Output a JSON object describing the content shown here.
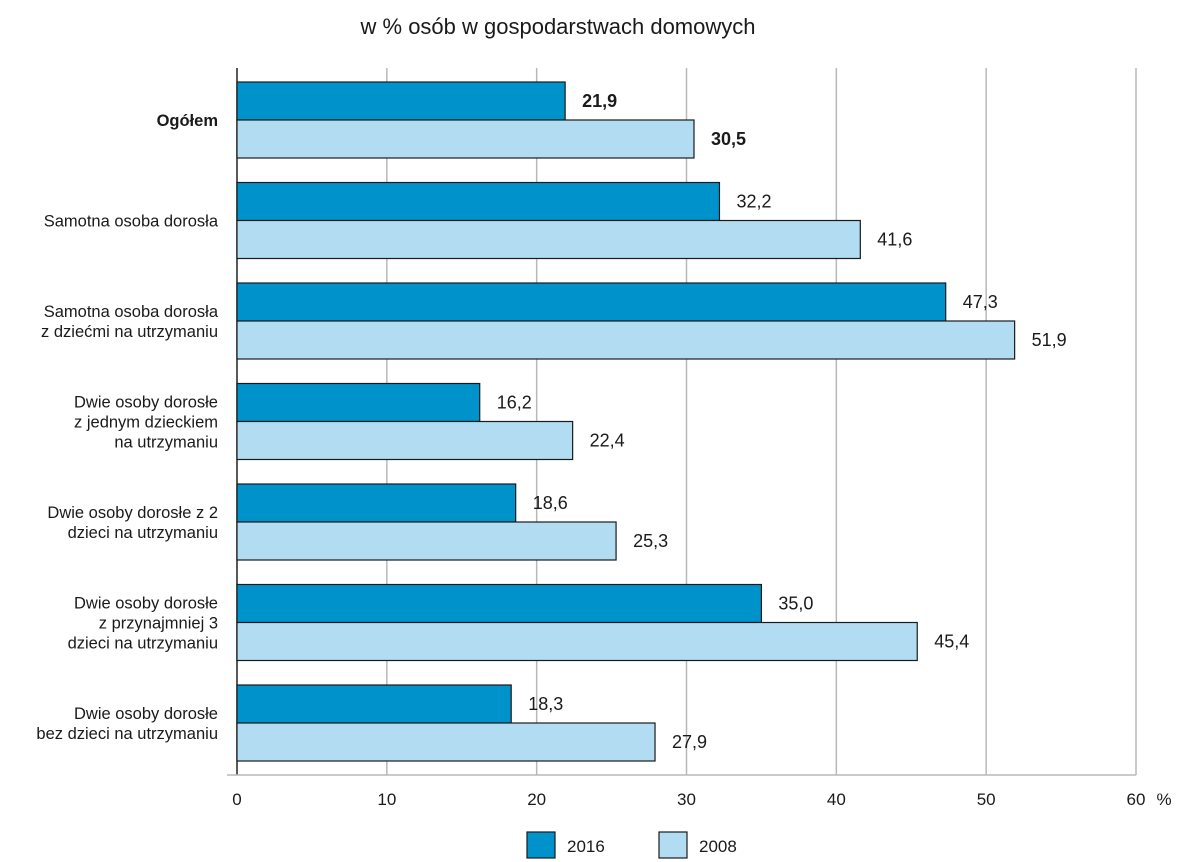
{
  "chart_data": {
    "type": "bar",
    "orientation": "horizontal",
    "title": "w % osób w gospodarstwach domowych",
    "categories": [
      [
        "Ogółem"
      ],
      [
        "Samotna osoba dorosła"
      ],
      [
        "Samotna osoba dorosła",
        "z dziećmi na utrzymaniu"
      ],
      [
        "Dwie osoby dorosłe",
        "z jednym dzieckiem",
        "na utrzymaniu"
      ],
      [
        "Dwie osoby dorosłe z 2",
        "dzieci na utrzymaniu"
      ],
      [
        "Dwie osoby dorosłe",
        "z przynajmniej 3",
        "dzieci na utrzymaniu"
      ],
      [
        "Dwie osoby dorosłe",
        "bez dzieci na utrzymaniu"
      ]
    ],
    "bold_categories": [
      0
    ],
    "series": [
      {
        "name": "2016",
        "color": "#0093cb",
        "values": [
          21.9,
          32.2,
          47.3,
          16.2,
          18.6,
          35.0,
          18.3
        ],
        "labels": [
          "21,9",
          "32,2",
          "47,3",
          "16,2",
          "18,6",
          "35,0",
          "18,3"
        ]
      },
      {
        "name": "2008",
        "color": "#b1dcf1",
        "values": [
          30.5,
          41.6,
          51.9,
          22.4,
          25.3,
          45.4,
          27.9
        ],
        "labels": [
          "30,5",
          "41,6",
          "51,9",
          "22,4",
          "25,3",
          "45,4",
          "27,9"
        ]
      }
    ],
    "xlim": [
      0,
      60
    ],
    "xticks": [
      "0",
      "10",
      "20",
      "30",
      "40",
      "50",
      "60"
    ],
    "xunit": "%",
    "grid": true,
    "legend_position": "bottom"
  }
}
